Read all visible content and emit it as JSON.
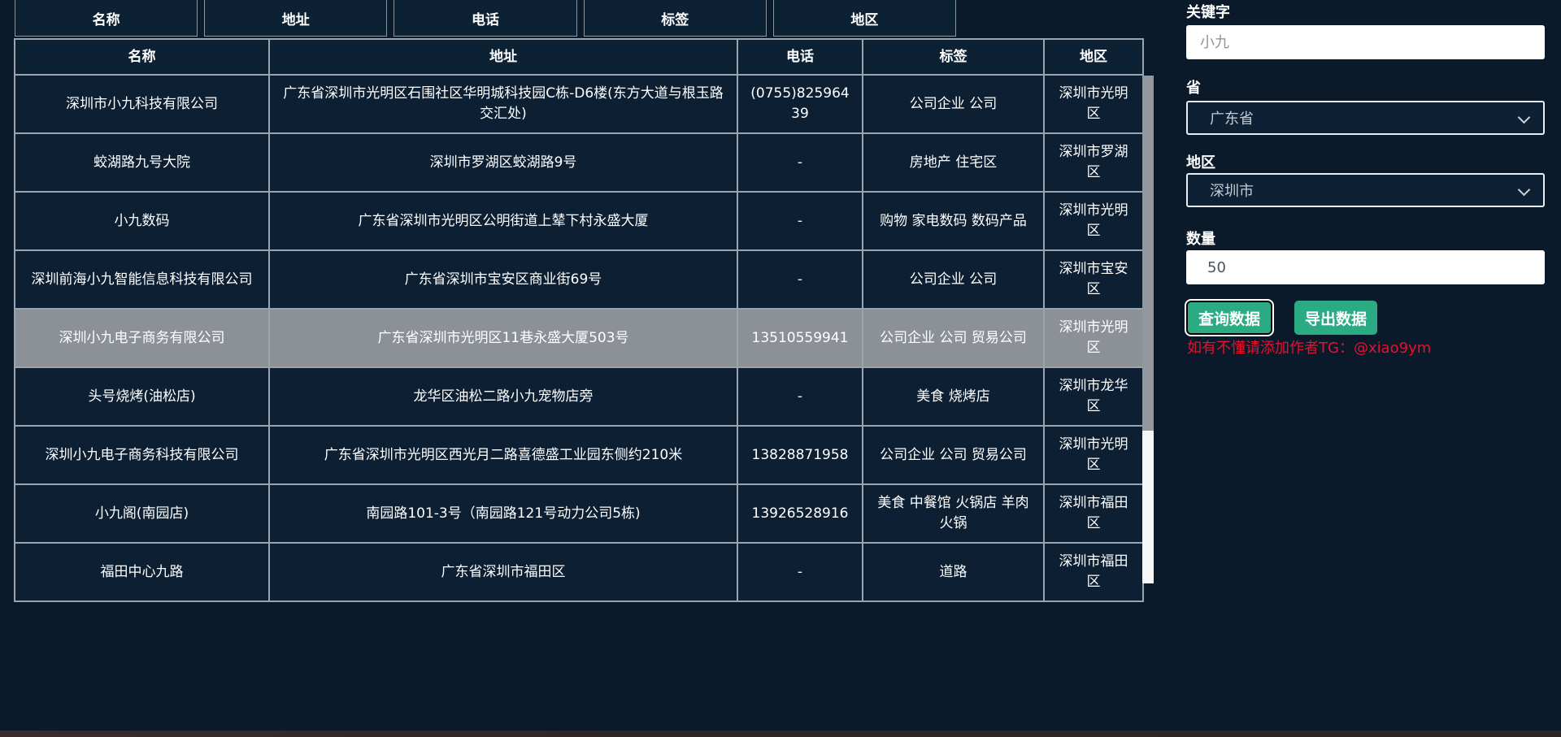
{
  "top_header": {
    "columns": [
      "名称",
      "地址",
      "电话",
      "标签",
      "地区"
    ]
  },
  "table": {
    "columns": [
      "名称",
      "地址",
      "电话",
      "标签",
      "地区"
    ],
    "rows": [
      {
        "name": "深圳市小九科技有限公司",
        "address": "广东省深圳市光明区石围社区华明城科技园C栋-D6楼(东方大道与根玉路交汇处)",
        "phone": "(0755)82596439",
        "tags": "公司企业 公司",
        "region": "深圳市光明区",
        "highlighted": false
      },
      {
        "name": "蛟湖路九号大院",
        "address": "深圳市罗湖区蛟湖路9号",
        "phone": "-",
        "tags": "房地产 住宅区",
        "region": "深圳市罗湖区",
        "highlighted": false
      },
      {
        "name": "小九数码",
        "address": "广东省深圳市光明区公明街道上辇下村永盛大厦",
        "phone": "-",
        "tags": "购物 家电数码 数码产品",
        "region": "深圳市光明区",
        "highlighted": false
      },
      {
        "name": "深圳前海小九智能信息科技有限公司",
        "address": "广东省深圳市宝安区商业街69号",
        "phone": "-",
        "tags": "公司企业 公司",
        "region": "深圳市宝安区",
        "highlighted": false
      },
      {
        "name": "深圳小九电子商务有限公司",
        "address": "广东省深圳市光明区11巷永盛大厦503号",
        "phone": "13510559941",
        "tags": "公司企业 公司 贸易公司",
        "region": "深圳市光明区",
        "highlighted": true
      },
      {
        "name": "头号烧烤(油松店)",
        "address": "龙华区油松二路小九宠物店旁",
        "phone": "-",
        "tags": "美食 烧烤店",
        "region": "深圳市龙华区",
        "highlighted": false
      },
      {
        "name": "深圳小九电子商务科技有限公司",
        "address": "广东省深圳市光明区西光月二路喜德盛工业园东侧约210米",
        "phone": "13828871958",
        "tags": "公司企业 公司 贸易公司",
        "region": "深圳市光明区",
        "highlighted": false
      },
      {
        "name": "小九阁(南园店)",
        "address": "南园路101-3号（南园路121号动力公司5栋)",
        "phone": "13926528916",
        "tags": "美食 中餐馆 火锅店 羊肉火锅",
        "region": "深圳市福田区",
        "highlighted": false
      },
      {
        "name": "福田中心九路",
        "address": "广东省深圳市福田区",
        "phone": "-",
        "tags": "道路",
        "region": "深圳市福田区",
        "highlighted": false
      }
    ]
  },
  "sidebar": {
    "keyword_label": "关键字",
    "keyword_placeholder": "小九",
    "province_label": "省",
    "province_value": "广东省",
    "region_label": "地区",
    "region_value": "深圳市",
    "quantity_label": "数量",
    "quantity_value": "50",
    "query_button": "查询数据",
    "export_button": "导出数据",
    "notice": "如有不懂请添加作者TG：@xiao9ym"
  },
  "colors": {
    "accent_teal": "#2bab83",
    "notice_red": "#e8112d",
    "row_highlight": "#8b9196",
    "cell_bg": "#0c1f33",
    "page_bg": "#0a1a2b"
  }
}
